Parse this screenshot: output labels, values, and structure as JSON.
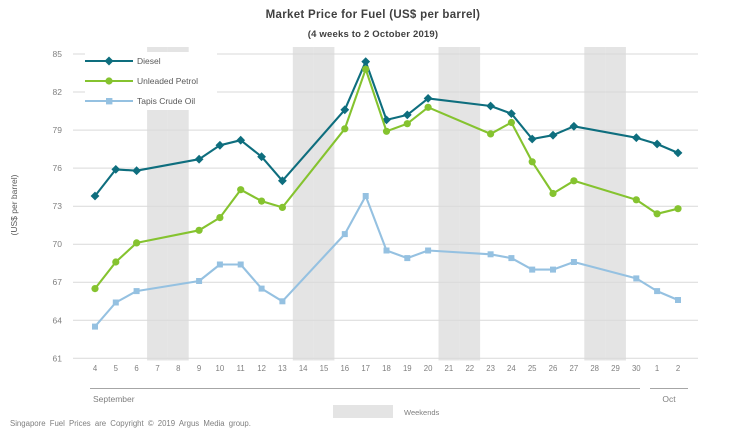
{
  "title": "Market Price for Fuel (US$ per barrel)",
  "subtitle": "(4 weeks to 2 October 2019)",
  "y_axis_title": "(US$ per barrel)",
  "footer": "Singapore Fuel Prices are Copyright © 2019 Argus Media group.",
  "weekend_legend_label": "Weekends",
  "month_labels": {
    "september": "September",
    "october": "Oct"
  },
  "colors": {
    "weekend_band": "#e4e4e4",
    "gridline": "#d9d9d9",
    "axis_text": "#7f7f7f",
    "separator_line": "#a6a6a6",
    "title_text": "#404040"
  },
  "chart_data": {
    "type": "line",
    "title": "Market Price for Fuel (US$ per barrel)",
    "subtitle": "(4 weeks to 2 October 2019)",
    "ylabel": "(US$ per barrel)",
    "ylim": [
      61,
      85
    ],
    "yticks": [
      85,
      82,
      79,
      76,
      73,
      70,
      67,
      64,
      61
    ],
    "grid": true,
    "legend_position": "top-left",
    "x_categories": [
      "4",
      "5",
      "6",
      "7",
      "8",
      "9",
      "10",
      "11",
      "12",
      "13",
      "14",
      "15",
      "16",
      "17",
      "18",
      "19",
      "20",
      "21",
      "22",
      "23",
      "24",
      "25",
      "26",
      "27",
      "28",
      "29",
      "30",
      "1",
      "2"
    ],
    "weekend_categories": [
      "7",
      "8",
      "14",
      "15",
      "21",
      "22",
      "28",
      "29"
    ],
    "x_group_labels": [
      {
        "label": "September",
        "from": "4",
        "to": "30"
      },
      {
        "label": "Oct",
        "from": "1",
        "to": "2"
      }
    ],
    "series": [
      {
        "name": "Diesel",
        "color": "#0e6e7e",
        "marker": "diamond",
        "x": [
          "4",
          "5",
          "6",
          "9",
          "10",
          "11",
          "12",
          "13",
          "16",
          "17",
          "18",
          "19",
          "20",
          "23",
          "24",
          "25",
          "26",
          "27",
          "30",
          "1",
          "2"
        ],
        "values": [
          73.8,
          75.9,
          75.8,
          76.7,
          77.8,
          78.2,
          76.9,
          75.0,
          80.6,
          84.4,
          79.8,
          80.2,
          81.5,
          80.9,
          80.3,
          78.3,
          78.6,
          79.3,
          78.4,
          77.9,
          77.2
        ]
      },
      {
        "name": "Unleaded Petrol",
        "color": "#85c32f",
        "marker": "circle",
        "x": [
          "4",
          "5",
          "6",
          "9",
          "10",
          "11",
          "12",
          "13",
          "16",
          "17",
          "18",
          "19",
          "20",
          "23",
          "24",
          "25",
          "26",
          "27",
          "30",
          "1",
          "2"
        ],
        "values": [
          66.5,
          68.6,
          70.1,
          71.1,
          72.1,
          74.3,
          73.4,
          72.9,
          79.1,
          83.8,
          78.9,
          79.5,
          80.8,
          78.7,
          79.6,
          76.5,
          74.0,
          75.0,
          73.5,
          72.4,
          72.8
        ]
      },
      {
        "name": "Tapis Crude Oil",
        "color": "#95c1e1",
        "marker": "square",
        "x": [
          "4",
          "5",
          "6",
          "9",
          "10",
          "11",
          "12",
          "13",
          "16",
          "17",
          "18",
          "19",
          "20",
          "23",
          "24",
          "25",
          "26",
          "27",
          "30",
          "1",
          "2"
        ],
        "values": [
          63.5,
          65.4,
          66.3,
          67.1,
          68.4,
          68.4,
          66.5,
          65.5,
          70.8,
          73.8,
          69.5,
          68.9,
          69.5,
          69.2,
          68.9,
          68.0,
          68.0,
          68.6,
          67.3,
          66.3,
          65.6
        ]
      }
    ]
  }
}
